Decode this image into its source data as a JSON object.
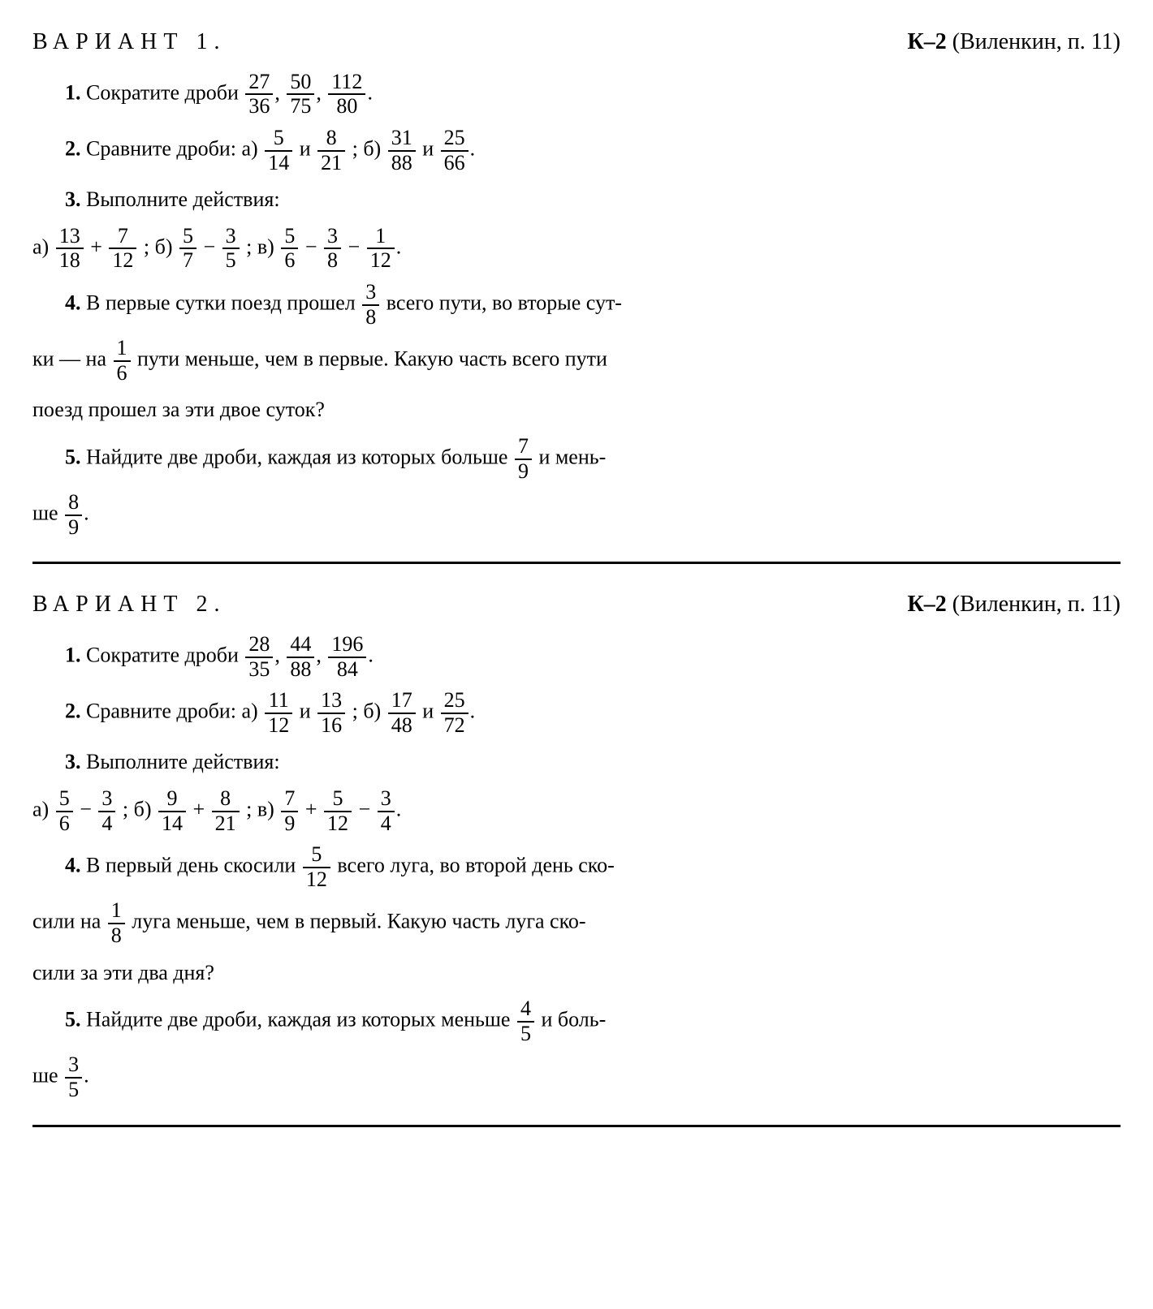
{
  "variant1": {
    "title": "ВАРИАНТ 1.",
    "klabel_bold": "К–2",
    "klabel_rest": " (Виленкин, п. 11)",
    "p1": {
      "num": "1.",
      "text": "Сократите дроби ",
      "f1n": "27",
      "f1d": "36",
      "f2n": "50",
      "f2d": "75",
      "f3n": "112",
      "f3d": "80",
      "end": "."
    },
    "p2": {
      "num": "2.",
      "text": "Сравните дроби:   а) ",
      "f1n": "5",
      "f1d": "14",
      "mid1": " и ",
      "f2n": "8",
      "f2d": "21",
      "mid2": ";   б) ",
      "f3n": "31",
      "f3d": "88",
      "mid3": " и ",
      "f4n": "25",
      "f4d": "66",
      "end": "."
    },
    "p3": {
      "num": "3.",
      "text": "Выполните действия:",
      "a": "а) ",
      "f1n": "13",
      "f1d": "18",
      "op1": " + ",
      "f2n": "7",
      "f2d": "12",
      "sep1": ";   б) ",
      "f3n": "5",
      "f3d": "7",
      "op2": " − ",
      "f4n": "3",
      "f4d": "5",
      "sep2": ";   в) ",
      "f5n": "5",
      "f5d": "6",
      "op3": " − ",
      "f6n": "3",
      "f6d": "8",
      "op4": " − ",
      "f7n": "1",
      "f7d": "12",
      "end": "."
    },
    "p4": {
      "num": "4.",
      "t1": "В первые сутки поезд прошел ",
      "f1n": "3",
      "f1d": "8",
      "t2": " всего пути, во вторые сут-",
      "t3": "ки — на ",
      "f2n": "1",
      "f2d": "6",
      "t4": " пути меньше, чем в первые. Какую часть всего пути",
      "t5": "поезд прошел за эти двое суток?"
    },
    "p5": {
      "num": "5.",
      "t1": "Найдите две дроби, каждая из которых больше ",
      "f1n": "7",
      "f1d": "9",
      "t2": " и мень-",
      "t3": "ше ",
      "f2n": "8",
      "f2d": "9",
      "end": "."
    }
  },
  "variant2": {
    "title": "ВАРИАНТ 2.",
    "klabel_bold": "К–2",
    "klabel_rest": " (Виленкин, п. 11)",
    "p1": {
      "num": "1.",
      "text": "Сократите дроби ",
      "f1n": "28",
      "f1d": "35",
      "f2n": "44",
      "f2d": "88",
      "f3n": "196",
      "f3d": "84",
      "end": "."
    },
    "p2": {
      "num": "2.",
      "text": "Сравните дроби:   а) ",
      "f1n": "11",
      "f1d": "12",
      "mid1": " и ",
      "f2n": "13",
      "f2d": "16",
      "mid2": ";   б) ",
      "f3n": "17",
      "f3d": "48",
      "mid3": " и ",
      "f4n": "25",
      "f4d": "72",
      "end": "."
    },
    "p3": {
      "num": "3.",
      "text": "Выполните действия:",
      "a": "а) ",
      "f1n": "5",
      "f1d": "6",
      "op1": " − ",
      "f2n": "3",
      "f2d": "4",
      "sep1": ";   б) ",
      "f3n": "9",
      "f3d": "14",
      "op2": " + ",
      "f4n": "8",
      "f4d": "21",
      "sep2": ";   в) ",
      "f5n": "7",
      "f5d": "9",
      "op3": " + ",
      "f6n": "5",
      "f6d": "12",
      "op4": " − ",
      "f7n": "3",
      "f7d": "4",
      "end": "."
    },
    "p4": {
      "num": "4.",
      "t1": "В первый день скосили ",
      "f1n": "5",
      "f1d": "12",
      "t2": " всего луга, во второй день ско-",
      "t3": "сили на ",
      "f2n": "1",
      "f2d": "8",
      "t4": " луга меньше, чем в первый. Какую часть луга ско-",
      "t5": "сили за эти два дня?"
    },
    "p5": {
      "num": "5.",
      "t1": "Найдите две дроби, каждая из которых меньше ",
      "f1n": "4",
      "f1d": "5",
      "t2": " и боль-",
      "t3": "ше ",
      "f2n": "3",
      "f2d": "5",
      "end": "."
    }
  }
}
